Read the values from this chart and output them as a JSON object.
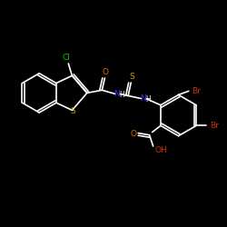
{
  "background_color": "#000000",
  "bond_color": "#ffffff",
  "atom_colors": {
    "Cl": "#00cc00",
    "O": "#dd6600",
    "S": "#ccaa00",
    "N": "#3333ff",
    "Br": "#cc3300",
    "H": "#ffffff",
    "C": "#ffffff",
    "OH": "#cc3300"
  },
  "figsize": [
    2.5,
    2.5
  ],
  "dpi": 100
}
